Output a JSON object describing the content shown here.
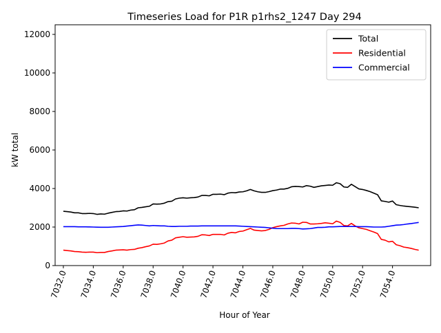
{
  "chart_data": {
    "type": "line",
    "title": "Timeseries Load for P1R p1rhs2_1247  Day 294",
    "xlabel": "Hour of Year",
    "ylabel": "kW total",
    "xlim": [
      7031.45,
      7056.55
    ],
    "ylim": [
      0,
      12500
    ],
    "xticks": [
      7032,
      7034,
      7036,
      7038,
      7040,
      7042,
      7044,
      7046,
      7048,
      7050,
      7052,
      7054
    ],
    "xtick_labels": [
      "7032.0",
      "7034.0",
      "7036.0",
      "7038.0",
      "7040.0",
      "7042.0",
      "7044.0",
      "7046.0",
      "7048.0",
      "7050.0",
      "7052.0",
      "7054.0"
    ],
    "yticks": [
      0,
      2000,
      4000,
      6000,
      8000,
      10000,
      12000
    ],
    "ytick_labels": [
      "0",
      "2000",
      "4000",
      "6000",
      "8000",
      "10000",
      "12000"
    ],
    "grid": false,
    "legend_position": "top-right",
    "series": [
      {
        "name": "Total",
        "color": "#000000",
        "x": [
          7032.0,
          7032.25,
          7032.5,
          7032.75,
          7033.0,
          7033.25,
          7033.5,
          7033.75,
          7034.0,
          7034.25,
          7034.5,
          7034.75,
          7035.0,
          7035.25,
          7035.5,
          7035.75,
          7036.0,
          7036.25,
          7036.5,
          7036.75,
          7037.0,
          7037.25,
          7037.5,
          7037.75,
          7038.0,
          7038.25,
          7038.5,
          7038.75,
          7039.0,
          7039.25,
          7039.5,
          7039.75,
          7040.0,
          7040.25,
          7040.5,
          7040.75,
          7041.0,
          7041.25,
          7041.5,
          7041.75,
          7042.0,
          7042.25,
          7042.5,
          7042.75,
          7043.0,
          7043.25,
          7043.5,
          7043.75,
          7044.0,
          7044.25,
          7044.5,
          7044.75,
          7045.0,
          7045.25,
          7045.5,
          7045.75,
          7046.0,
          7046.25,
          7046.5,
          7046.75,
          7047.0,
          7047.25,
          7047.5,
          7047.75,
          7048.0,
          7048.25,
          7048.5,
          7048.75,
          7049.0,
          7049.25,
          7049.5,
          7049.75,
          7050.0,
          7050.25,
          7050.5,
          7050.75,
          7051.0,
          7051.25,
          7051.5,
          7051.75,
          7052.0,
          7052.25,
          7052.5,
          7052.75,
          7053.0,
          7053.25,
          7053.5,
          7053.75,
          7054.0,
          7054.25,
          7054.5,
          7054.75,
          7055.0,
          7055.25,
          7055.5,
          7055.75
        ],
        "values": [
          2820,
          2800,
          2780,
          2740,
          2740,
          2700,
          2700,
          2710,
          2700,
          2660,
          2680,
          2670,
          2720,
          2760,
          2800,
          2810,
          2840,
          2830,
          2880,
          2900,
          3000,
          3020,
          3050,
          3080,
          3200,
          3190,
          3200,
          3240,
          3320,
          3340,
          3460,
          3500,
          3520,
          3500,
          3520,
          3530,
          3560,
          3640,
          3640,
          3620,
          3700,
          3700,
          3710,
          3680,
          3760,
          3790,
          3780,
          3820,
          3830,
          3880,
          3950,
          3880,
          3830,
          3800,
          3800,
          3840,
          3890,
          3920,
          3970,
          3970,
          4010,
          4090,
          4110,
          4100,
          4080,
          4150,
          4120,
          4060,
          4100,
          4140,
          4160,
          4180,
          4170,
          4300,
          4250,
          4080,
          4060,
          4220,
          4100,
          3980,
          3950,
          3900,
          3840,
          3760,
          3680,
          3360,
          3330,
          3290,
          3350,
          3160,
          3120,
          3090,
          3070,
          3050,
          3030,
          3000
        ]
      },
      {
        "name": "Residential",
        "color": "#ff0000",
        "x": [
          7032.0,
          7032.25,
          7032.5,
          7032.75,
          7033.0,
          7033.25,
          7033.5,
          7033.75,
          7034.0,
          7034.25,
          7034.5,
          7034.75,
          7035.0,
          7035.25,
          7035.5,
          7035.75,
          7036.0,
          7036.25,
          7036.5,
          7036.75,
          7037.0,
          7037.25,
          7037.5,
          7037.75,
          7038.0,
          7038.25,
          7038.5,
          7038.75,
          7039.0,
          7039.25,
          7039.5,
          7039.75,
          7040.0,
          7040.25,
          7040.5,
          7040.75,
          7041.0,
          7041.25,
          7041.5,
          7041.75,
          7042.0,
          7042.25,
          7042.5,
          7042.75,
          7043.0,
          7043.25,
          7043.5,
          7043.75,
          7044.0,
          7044.25,
          7044.5,
          7044.75,
          7045.0,
          7045.25,
          7045.5,
          7045.75,
          7046.0,
          7046.25,
          7046.5,
          7046.75,
          7047.0,
          7047.25,
          7047.5,
          7047.75,
          7048.0,
          7048.25,
          7048.5,
          7048.75,
          7049.0,
          7049.25,
          7049.5,
          7049.75,
          7050.0,
          7050.25,
          7050.5,
          7050.75,
          7051.0,
          7051.25,
          7051.5,
          7051.75,
          7052.0,
          7052.25,
          7052.5,
          7052.75,
          7053.0,
          7053.25,
          7053.5,
          7053.75,
          7054.0,
          7054.25,
          7054.5,
          7054.75,
          7055.0,
          7055.25,
          7055.5,
          7055.75
        ],
        "values": [
          800,
          780,
          760,
          730,
          720,
          700,
          690,
          700,
          700,
          670,
          680,
          680,
          730,
          760,
          800,
          810,
          820,
          800,
          830,
          840,
          900,
          930,
          980,
          1020,
          1110,
          1100,
          1130,
          1170,
          1280,
          1320,
          1440,
          1470,
          1500,
          1470,
          1480,
          1490,
          1520,
          1600,
          1590,
          1560,
          1620,
          1620,
          1620,
          1590,
          1680,
          1720,
          1700,
          1770,
          1790,
          1860,
          1930,
          1840,
          1820,
          1800,
          1820,
          1880,
          1970,
          2020,
          2060,
          2090,
          2160,
          2210,
          2200,
          2160,
          2250,
          2240,
          2160,
          2160,
          2170,
          2190,
          2220,
          2200,
          2170,
          2310,
          2240,
          2080,
          2060,
          2190,
          2060,
          1960,
          1920,
          1880,
          1810,
          1740,
          1660,
          1360,
          1320,
          1230,
          1260,
          1080,
          1030,
          960,
          930,
          890,
          840,
          800
        ]
      },
      {
        "name": "Commercial",
        "color": "#0000ff",
        "x": [
          7032.0,
          7032.25,
          7032.5,
          7032.75,
          7033.0,
          7033.25,
          7033.5,
          7033.75,
          7034.0,
          7034.25,
          7034.5,
          7034.75,
          7035.0,
          7035.25,
          7035.5,
          7035.75,
          7036.0,
          7036.25,
          7036.5,
          7036.75,
          7037.0,
          7037.25,
          7037.5,
          7037.75,
          7038.0,
          7038.25,
          7038.5,
          7038.75,
          7039.0,
          7039.25,
          7039.5,
          7039.75,
          7040.0,
          7040.25,
          7040.5,
          7040.75,
          7041.0,
          7041.25,
          7041.5,
          7041.75,
          7042.0,
          7042.25,
          7042.5,
          7042.75,
          7043.0,
          7043.25,
          7043.5,
          7043.75,
          7044.0,
          7044.25,
          7044.5,
          7044.75,
          7045.0,
          7045.25,
          7045.5,
          7045.75,
          7046.0,
          7046.25,
          7046.5,
          7046.75,
          7047.0,
          7047.25,
          7047.5,
          7047.75,
          7048.0,
          7048.25,
          7048.5,
          7048.75,
          7049.0,
          7049.25,
          7049.5,
          7049.75,
          7050.0,
          7050.25,
          7050.5,
          7050.75,
          7051.0,
          7051.25,
          7051.5,
          7051.75,
          7052.0,
          7052.25,
          7052.5,
          7052.75,
          7053.0,
          7053.25,
          7053.5,
          7053.75,
          7054.0,
          7054.25,
          7054.5,
          7054.75,
          7055.0,
          7055.25,
          7055.5,
          7055.75
        ],
        "values": [
          2020,
          2020,
          2020,
          2020,
          2010,
          2010,
          2010,
          2005,
          2000,
          1995,
          1990,
          1990,
          1990,
          2000,
          2010,
          2020,
          2030,
          2050,
          2070,
          2090,
          2110,
          2100,
          2080,
          2060,
          2080,
          2070,
          2060,
          2060,
          2040,
          2030,
          2030,
          2040,
          2040,
          2040,
          2050,
          2050,
          2050,
          2060,
          2060,
          2060,
          2060,
          2060,
          2060,
          2060,
          2060,
          2060,
          2060,
          2050,
          2040,
          2030,
          2020,
          2010,
          2000,
          1990,
          1980,
          1960,
          1940,
          1920,
          1920,
          1920,
          1920,
          1930,
          1930,
          1920,
          1900,
          1910,
          1920,
          1950,
          1980,
          1980,
          1990,
          2010,
          2010,
          2020,
          2030,
          2030,
          2030,
          2030,
          2030,
          2020,
          2020,
          2020,
          2010,
          2000,
          2000,
          2000,
          2010,
          2040,
          2070,
          2100,
          2110,
          2130,
          2160,
          2180,
          2210,
          2240
        ]
      }
    ]
  }
}
